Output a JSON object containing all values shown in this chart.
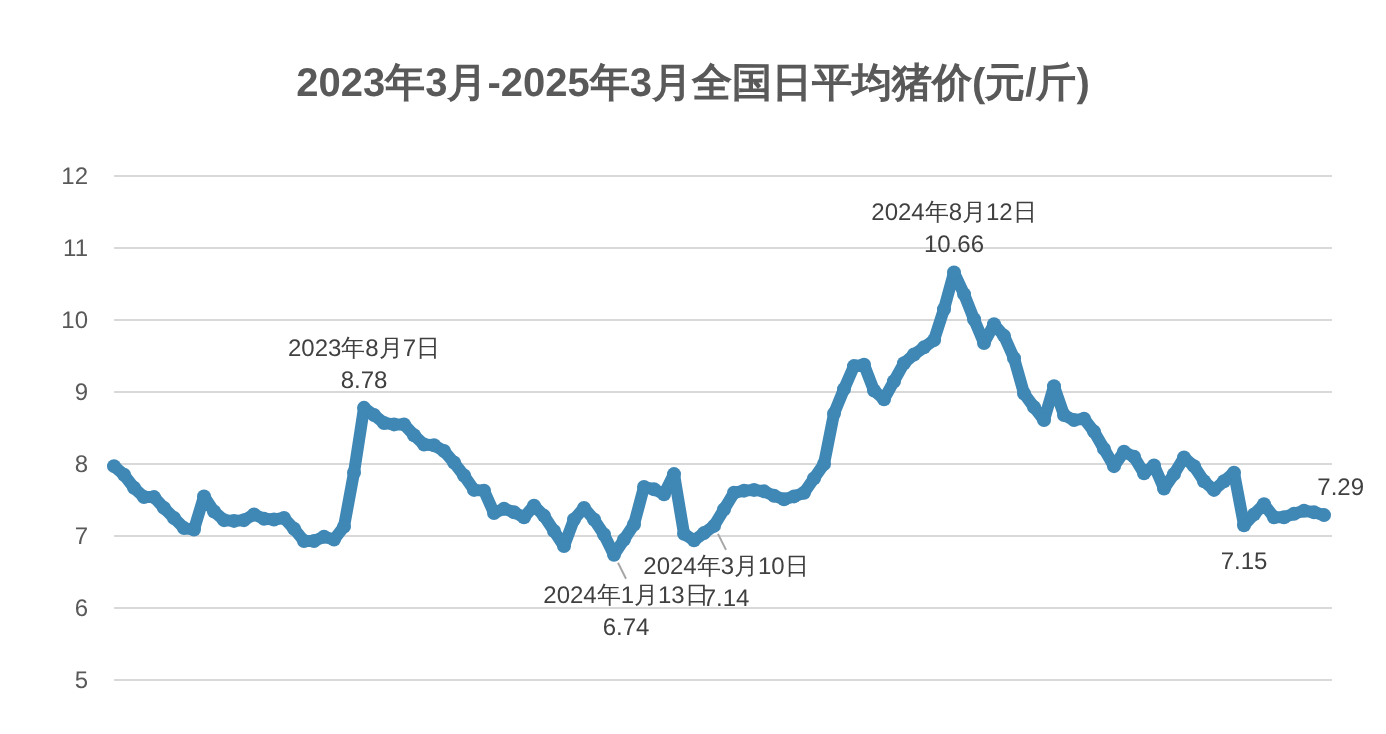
{
  "chart_data": {
    "type": "line",
    "title": "2023年3月-2025年3月全国日平均猪价(元/斤)",
    "categories": [
      null,
      null,
      null,
      null,
      null,
      null,
      null,
      null,
      null,
      null,
      null,
      null,
      null,
      null,
      null,
      null,
      null,
      null,
      null,
      null,
      null,
      null,
      null,
      null,
      null,
      null,
      null,
      null,
      null,
      null,
      null,
      null,
      null,
      null,
      null,
      null,
      null,
      null,
      null,
      null,
      null,
      null,
      null,
      null,
      null,
      null,
      null,
      null,
      null,
      null,
      null,
      null,
      null,
      null,
      null,
      null,
      null,
      null,
      null,
      null,
      null,
      null,
      null,
      null,
      null,
      null,
      null,
      null,
      null,
      null,
      null,
      null,
      null,
      null,
      null,
      null,
      null,
      null,
      null,
      null,
      null,
      null,
      null,
      null,
      null,
      null,
      null,
      null,
      null,
      null,
      null,
      null,
      null,
      null,
      null,
      null,
      null,
      null,
      null,
      null,
      null,
      null,
      null,
      null,
      null,
      null,
      null,
      null,
      null,
      null,
      null,
      null,
      null,
      null,
      null,
      null,
      null,
      null,
      null,
      null,
      null,
      null
    ],
    "ylim": [
      5,
      12
    ],
    "yticks": [
      5,
      6,
      7,
      8,
      9,
      10,
      11,
      12
    ],
    "grid": "y",
    "tick_labels": "y",
    "marker": "circle",
    "line_style": "solid",
    "series": [
      {
        "color": "#3f87b5",
        "values": [
          7.97,
          7.85,
          7.67,
          7.54,
          7.54,
          7.39,
          7.25,
          7.11,
          7.09,
          7.55,
          7.34,
          7.22,
          7.21,
          7.22,
          7.3,
          7.24,
          7.23,
          7.25,
          7.1,
          6.93,
          6.93,
          6.99,
          6.95,
          7.13,
          7.88,
          8.78,
          8.68,
          8.57,
          8.55,
          8.55,
          8.4,
          8.27,
          8.26,
          8.18,
          8.02,
          7.84,
          7.64,
          7.63,
          7.32,
          7.38,
          7.33,
          7.26,
          7.42,
          7.28,
          7.07,
          6.86,
          7.23,
          7.39,
          7.23,
          7.02,
          6.74,
          6.95,
          7.16,
          7.68,
          7.65,
          7.58,
          7.86,
          7.03,
          6.94,
          7.04,
          7.14,
          7.37,
          7.6,
          7.63,
          7.64,
          7.62,
          7.56,
          7.51,
          7.55,
          7.6,
          7.8,
          8.0,
          8.7,
          9.04,
          9.36,
          9.38,
          9.02,
          8.9,
          9.15,
          9.4,
          9.52,
          9.62,
          9.72,
          10.15,
          10.66,
          10.36,
          10.01,
          9.68,
          9.94,
          9.78,
          9.47,
          8.98,
          8.79,
          8.61,
          9.08,
          8.68,
          8.61,
          8.63,
          8.45,
          8.21,
          7.97,
          8.17,
          8.1,
          7.87,
          7.98,
          7.66,
          7.86,
          8.09,
          7.97,
          7.76,
          7.64,
          7.76,
          7.88,
          7.15,
          7.3,
          7.44,
          7.26,
          7.26,
          7.31,
          7.35,
          7.33,
          7.29
        ]
      }
    ],
    "annotations": [
      {
        "text": "2023年8月7日\n8.78",
        "y": 8.78
      },
      {
        "text": "2024年1月13日\n6.74",
        "y": 6.74
      },
      {
        "text": "2024年3月10日\n7.14",
        "y": 7.14
      },
      {
        "text": "2024年8月12日\n10.66",
        "y": 10.66
      },
      {
        "text": "7.15",
        "y": 7.15
      },
      {
        "text": "7.29",
        "y": 7.29
      }
    ]
  }
}
